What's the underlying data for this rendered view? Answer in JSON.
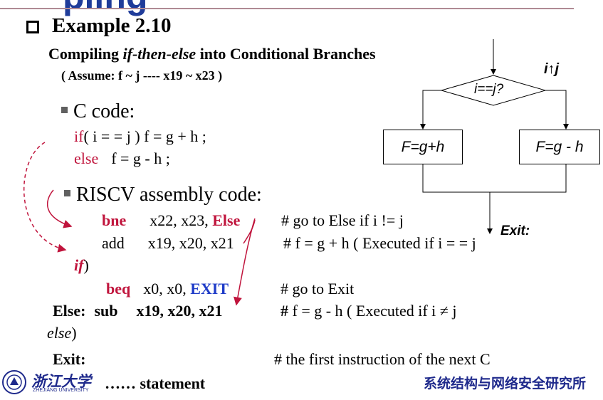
{
  "header": {
    "partial_title": "pling"
  },
  "example": {
    "title": "Example 2.10",
    "subtitle_pre": "Compiling ",
    "subtitle_em": "if-then-else",
    "subtitle_post": " into Conditional Branches",
    "assume": "( Assume: f ~ j  ---- x19 ~ x23 )"
  },
  "c_code": {
    "heading": "C code:",
    "line1_kw": "if",
    "line1_rest": "( i  = =  j )  f  =  g  +  h ;",
    "line2_kw": "else",
    "line2_rest": "f  =  g  -  h ;"
  },
  "asm": {
    "heading": "RISCV assembly code:",
    "l1_op": "bne",
    "l1_args": "x22, x23, ",
    "l1_label": "Else",
    "l1_comment": "# go to Else if  i  != j",
    "l2_op": "add",
    "l2_args": "x19, x20, x21",
    "l2_comment": "# f  =  g  +  h  ( Executed if  i  = =  j",
    "l2_tail": "if",
    "l2_tail_close": ")",
    "l3_op": "beq",
    "l3_args": "x0, x0,  ",
    "l3_label": "EXIT",
    "l3_comment": "# go to Exit",
    "l4_label": "Else:",
    "l4_op": "sub",
    "l4_args": "x19, x20, x21",
    "l4_comment_b": "#",
    "l4_comment": " f  =  g  -  h  ( Executed if i ≠ j",
    "l4_tail": "else",
    "l4_tail_close": ")",
    "l5_label": "Exit:",
    "l5_comment": "# the first instruction of the next C",
    "l6_dots": "……",
    "l6_text": " statement"
  },
  "flowchart": {
    "cond": "i==j?",
    "neq": "i↑j",
    "then_box": "F=g+h",
    "else_box": "F=g - h",
    "exit": "Exit:"
  },
  "footer": {
    "univ_cn": "浙江大学",
    "univ_en": "ZHEJIANG UNIVERSITY",
    "lab_cn": "系统结构与网络安全研究所"
  },
  "colors": {
    "red": "#c0143c",
    "blue": "#1f3cc8",
    "footer": "#1f2a8c"
  }
}
